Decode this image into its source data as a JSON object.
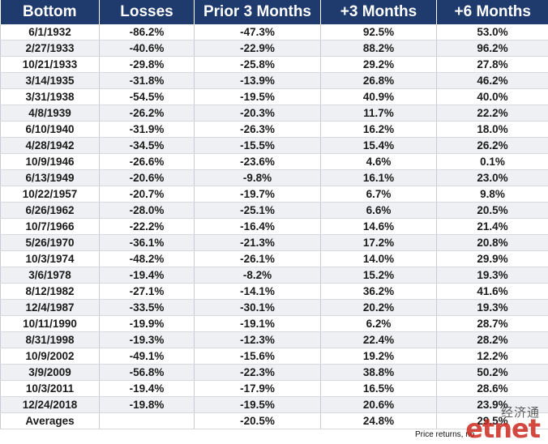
{
  "table": {
    "headers": [
      "Bottom",
      "Losses",
      "Prior 3 Months",
      "+3 Months",
      "+6 Months"
    ],
    "rows": [
      [
        "6/1/1932",
        "-86.2%",
        "-47.3%",
        "92.5%",
        "53.0%"
      ],
      [
        "2/27/1933",
        "-40.6%",
        "-22.9%",
        "88.2%",
        "96.2%"
      ],
      [
        "10/21/1933",
        "-29.8%",
        "-25.8%",
        "29.2%",
        "27.8%"
      ],
      [
        "3/14/1935",
        "-31.8%",
        "-13.9%",
        "26.8%",
        "46.2%"
      ],
      [
        "3/31/1938",
        "-54.5%",
        "-19.5%",
        "40.9%",
        "40.0%"
      ],
      [
        "4/8/1939",
        "-26.2%",
        "-20.3%",
        "11.7%",
        "22.2%"
      ],
      [
        "6/10/1940",
        "-31.9%",
        "-26.3%",
        "16.2%",
        "18.0%"
      ],
      [
        "4/28/1942",
        "-34.5%",
        "-15.5%",
        "15.4%",
        "26.2%"
      ],
      [
        "10/9/1946",
        "-26.6%",
        "-23.6%",
        "4.6%",
        "0.1%"
      ],
      [
        "6/13/1949",
        "-20.6%",
        "-9.8%",
        "16.1%",
        "23.0%"
      ],
      [
        "10/22/1957",
        "-20.7%",
        "-19.7%",
        "6.7%",
        "9.8%"
      ],
      [
        "6/26/1962",
        "-28.0%",
        "-25.1%",
        "6.6%",
        "20.5%"
      ],
      [
        "10/7/1966",
        "-22.2%",
        "-16.4%",
        "14.6%",
        "21.4%"
      ],
      [
        "5/26/1970",
        "-36.1%",
        "-21.3%",
        "17.2%",
        "20.8%"
      ],
      [
        "10/3/1974",
        "-48.2%",
        "-26.1%",
        "14.0%",
        "29.9%"
      ],
      [
        "3/6/1978",
        "-19.4%",
        "-8.2%",
        "15.2%",
        "19.3%"
      ],
      [
        "8/12/1982",
        "-27.1%",
        "-14.1%",
        "36.2%",
        "41.6%"
      ],
      [
        "12/4/1987",
        "-33.5%",
        "-30.1%",
        "20.2%",
        "19.3%"
      ],
      [
        "10/11/1990",
        "-19.9%",
        "-19.1%",
        "6.2%",
        "28.7%"
      ],
      [
        "8/31/1998",
        "-19.3%",
        "-12.3%",
        "22.4%",
        "28.2%"
      ],
      [
        "10/9/2002",
        "-49.1%",
        "-15.6%",
        "19.2%",
        "12.2%"
      ],
      [
        "3/9/2009",
        "-56.8%",
        "-22.3%",
        "38.8%",
        "50.2%"
      ],
      [
        "10/3/2011",
        "-19.4%",
        "-17.9%",
        "16.5%",
        "28.6%"
      ],
      [
        "12/24/2018",
        "-19.8%",
        "-19.5%",
        "20.6%",
        "23.9%"
      ]
    ],
    "averages": [
      "Averages",
      "",
      "-20.5%",
      "24.8%",
      "29.5%"
    ]
  },
  "footnote": "Price returns, no",
  "watermark": {
    "chinese": "经济通",
    "logo": "etnet"
  },
  "colors": {
    "header_bg": "#1f3a6d",
    "header_text": "#ffffff",
    "stripe": "#eef0f3",
    "logo": "#cc2a1f"
  }
}
